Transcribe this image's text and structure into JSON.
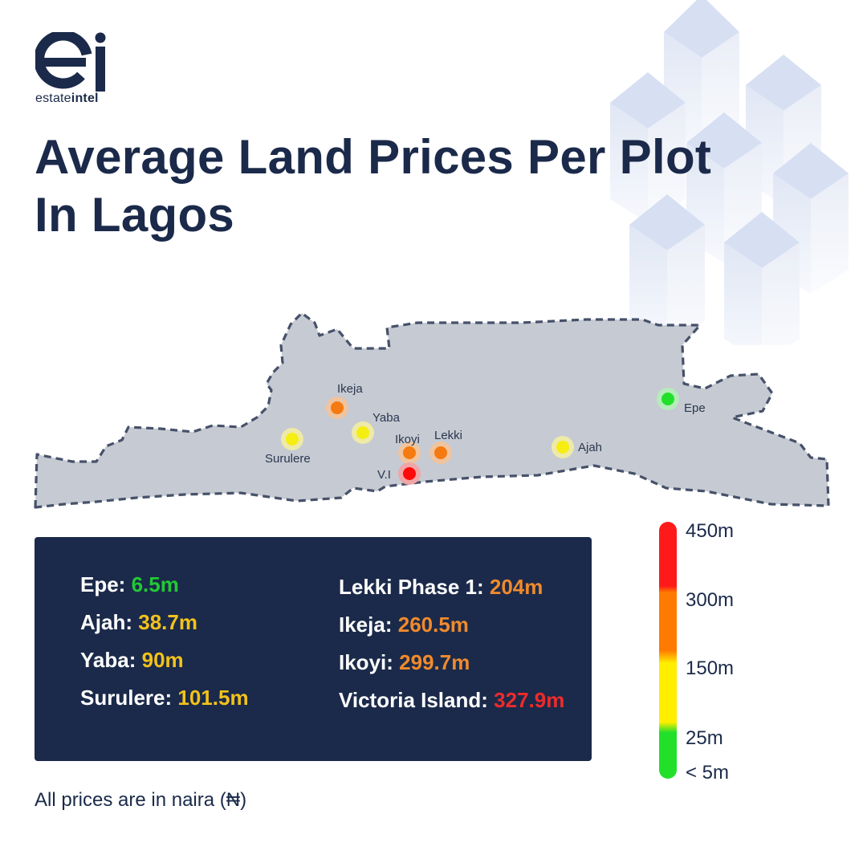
{
  "logo": {
    "mark": "ei",
    "wordmark_light": "estate",
    "wordmark_bold": "intel"
  },
  "title": "Average Land Prices Per Plot In Lagos",
  "map": {
    "markers": [
      {
        "label": "Ikeja",
        "level": "high"
      },
      {
        "label": "Yaba",
        "level": "mid"
      },
      {
        "label": "Surulere",
        "level": "mid"
      },
      {
        "label": "Ikoyi",
        "level": "high"
      },
      {
        "label": "Lekki",
        "level": "high"
      },
      {
        "label": "V.I",
        "level": "top"
      },
      {
        "label": "Ajah",
        "level": "mid"
      },
      {
        "label": "Epe",
        "level": "low"
      }
    ]
  },
  "prices": {
    "left": [
      {
        "name": "Epe:",
        "value": "6.5m",
        "color": "#22c935"
      },
      {
        "name": "Ajah:",
        "value": "38.7m",
        "color": "#f2c21a"
      },
      {
        "name": "Yaba:",
        "value": "90m",
        "color": "#f2c21a"
      },
      {
        "name": "Surulere:",
        "value": "101.5m",
        "color": "#f2c21a"
      }
    ],
    "right": [
      {
        "name": "Lekki Phase 1:",
        "value": "204m",
        "color": "#f08a2c"
      },
      {
        "name": "Ikeja:",
        "value": "260.5m",
        "color": "#f08a2c"
      },
      {
        "name": "Ikoyi:",
        "value": "299.7m",
        "color": "#f08a2c"
      },
      {
        "name": "Victoria Island:",
        "value": "327.9m",
        "color": "#ee2a2a"
      }
    ]
  },
  "legend": {
    "labels": [
      "450m",
      "300m",
      "150m",
      "25m",
      "< 5m"
    ],
    "colors": {
      "red": "#ff1a1a",
      "orange": "#ff7a00",
      "yellow": "#ffee00",
      "green": "#22e02a"
    }
  },
  "footer": "All prices are in naira (₦)",
  "colors": {
    "navy": "#1b2a4a",
    "map_fill": "#c6cad2",
    "map_border": "#46516a"
  }
}
